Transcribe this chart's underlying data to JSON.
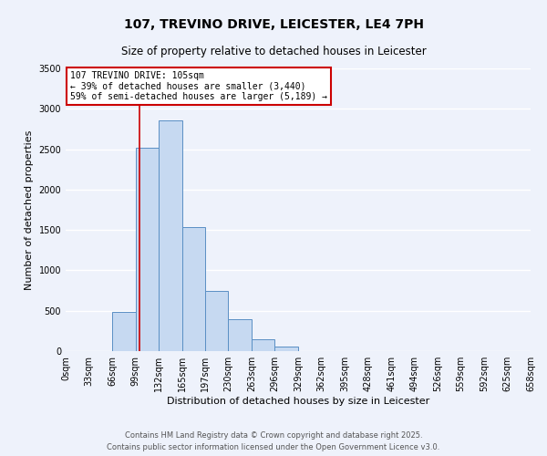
{
  "title": "107, TREVINO DRIVE, LEICESTER, LE4 7PH",
  "subtitle": "Size of property relative to detached houses in Leicester",
  "xlabel": "Distribution of detached houses by size in Leicester",
  "ylabel": "Number of detached properties",
  "bin_edges": [
    0,
    33,
    66,
    99,
    132,
    165,
    197,
    230,
    263,
    296,
    329,
    362,
    395,
    428,
    461,
    494,
    526,
    559,
    592,
    625,
    658
  ],
  "bin_labels": [
    "0sqm",
    "33sqm",
    "66sqm",
    "99sqm",
    "132sqm",
    "165sqm",
    "197sqm",
    "230sqm",
    "263sqm",
    "296sqm",
    "329sqm",
    "362sqm",
    "395sqm",
    "428sqm",
    "461sqm",
    "494sqm",
    "526sqm",
    "559sqm",
    "592sqm",
    "625sqm",
    "658sqm"
  ],
  "counts": [
    0,
    0,
    490,
    2520,
    2860,
    1535,
    745,
    400,
    150,
    60,
    0,
    0,
    0,
    0,
    0,
    0,
    0,
    0,
    0,
    0
  ],
  "bar_color": "#c6d9f1",
  "bar_edge_color": "#5a8fc4",
  "property_line_x": 105,
  "property_line_color": "#cc0000",
  "annotation_title": "107 TREVINO DRIVE: 105sqm",
  "annotation_line1": "← 39% of detached houses are smaller (3,440)",
  "annotation_line2": "59% of semi-detached houses are larger (5,189) →",
  "annotation_box_color": "#cc0000",
  "ylim": [
    0,
    3500
  ],
  "yticks": [
    0,
    500,
    1000,
    1500,
    2000,
    2500,
    3000,
    3500
  ],
  "footer1": "Contains HM Land Registry data © Crown copyright and database right 2025.",
  "footer2": "Contains public sector information licensed under the Open Government Licence v3.0.",
  "bg_color": "#eef2fb",
  "grid_color": "#ffffff",
  "title_fontsize": 10,
  "subtitle_fontsize": 8.5,
  "ylabel_fontsize": 8,
  "xlabel_fontsize": 8,
  "tick_fontsize": 7,
  "annotation_fontsize": 7,
  "footer_fontsize": 6
}
